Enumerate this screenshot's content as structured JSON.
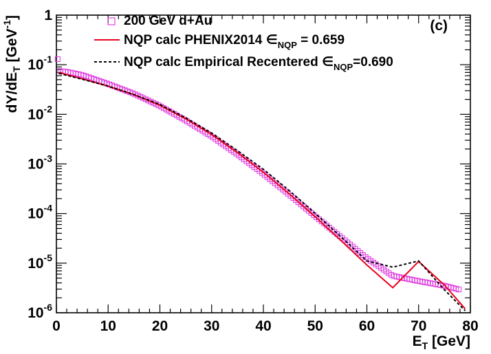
{
  "chart_data": {
    "type": "scatter",
    "scale": {
      "x": "linear",
      "y": "log"
    },
    "xlim": [
      0,
      80
    ],
    "ylim": [
      1e-06,
      1
    ],
    "xlabel": {
      "main": "E",
      "sub": "T",
      "rest": " [GeV]"
    },
    "ylabel": {
      "pre": "dY/dE",
      "sub": "T",
      "mid": " [GeV",
      "sup": "-1",
      "post": "]"
    },
    "panel_label": "(c)",
    "x_ticks": [
      {
        "value": 0,
        "label": "0"
      },
      {
        "value": 10,
        "label": "10"
      },
      {
        "value": 20,
        "label": "20"
      },
      {
        "value": 30,
        "label": "30"
      },
      {
        "value": 40,
        "label": "40"
      },
      {
        "value": 50,
        "label": "50"
      },
      {
        "value": 60,
        "label": "60"
      },
      {
        "value": 70,
        "label": "70"
      },
      {
        "value": 80,
        "label": "80"
      }
    ],
    "y_ticks": [
      {
        "value": 1,
        "base": "1",
        "exp": ""
      },
      {
        "value": 0.1,
        "base": "10",
        "exp": "-1"
      },
      {
        "value": 0.01,
        "base": "10",
        "exp": "-2"
      },
      {
        "value": 0.001,
        "base": "10",
        "exp": "-3"
      },
      {
        "value": 0.0001,
        "base": "10",
        "exp": "-4"
      },
      {
        "value": 1e-05,
        "base": "10",
        "exp": "-5"
      },
      {
        "value": 1e-06,
        "base": "10",
        "exp": "-6"
      }
    ],
    "legend_position": "top",
    "legend": [
      {
        "key": "data",
        "text": "200 GeV d+Au",
        "style": "marker"
      },
      {
        "key": "phenix",
        "text": "NQP calc PHENIX2014 ∈",
        "sub": "NQP",
        "tail": " = 0.659",
        "style": "solid"
      },
      {
        "key": "empirical",
        "text": "NQP calc Empirical Recentered ∈",
        "sub": "NQP",
        "tail": "=0.690",
        "style": "dashed"
      }
    ],
    "series": [
      {
        "name": "200 GeV d+Au",
        "key": "data",
        "kind": "markers",
        "color": "#e040e0",
        "x_start": 0.25,
        "x_step": 0.5,
        "knots_x": [
          0.25,
          0.5,
          2,
          5,
          10,
          15,
          20,
          25,
          30,
          35,
          40,
          45,
          50,
          55,
          60,
          65,
          70,
          75,
          78
        ],
        "knots_y": [
          0.13,
          0.075,
          0.072,
          0.062,
          0.041,
          0.026,
          0.0148,
          0.0075,
          0.0036,
          0.00155,
          0.00063,
          0.00024,
          8.85e-05,
          3.35e-05,
          1.26e-05,
          5.55e-06,
          4.35e-06,
          3.5e-06,
          2.9e-06
        ]
      },
      {
        "name": "NQP calc PHENIX2014",
        "key": "phenix",
        "kind": "line",
        "color": "#e8001c",
        "dash": "none",
        "knots_x": [
          0.5,
          2,
          5,
          10,
          15,
          20,
          25,
          30,
          35,
          40,
          45,
          50,
          55,
          60,
          65,
          70,
          75,
          79
        ],
        "knots_y": [
          0.07,
          0.063,
          0.052,
          0.037,
          0.025,
          0.0152,
          0.0081,
          0.0039,
          0.00168,
          0.00068,
          0.00025,
          8.65e-05,
          2.85e-05,
          9.2e-06,
          3.2e-06,
          1.08e-05,
          3.6e-06,
          1.2e-06
        ]
      },
      {
        "name": "NQP calc Empirical Recentered",
        "key": "empirical",
        "kind": "line",
        "color": "#000000",
        "dash": "4,3",
        "knots_x": [
          0.5,
          2,
          5,
          10,
          15,
          20,
          25,
          30,
          35,
          40,
          45,
          50,
          55,
          60,
          65,
          70,
          75,
          79
        ],
        "knots_y": [
          0.067,
          0.061,
          0.051,
          0.037,
          0.025,
          0.0158,
          0.0085,
          0.0042,
          0.00185,
          0.00078,
          0.00029,
          0.000101,
          3.39e-05,
          1.11e-05,
          8.3e-06,
          1.11e-05,
          2.9e-06,
          1.1e-06
        ]
      }
    ]
  }
}
